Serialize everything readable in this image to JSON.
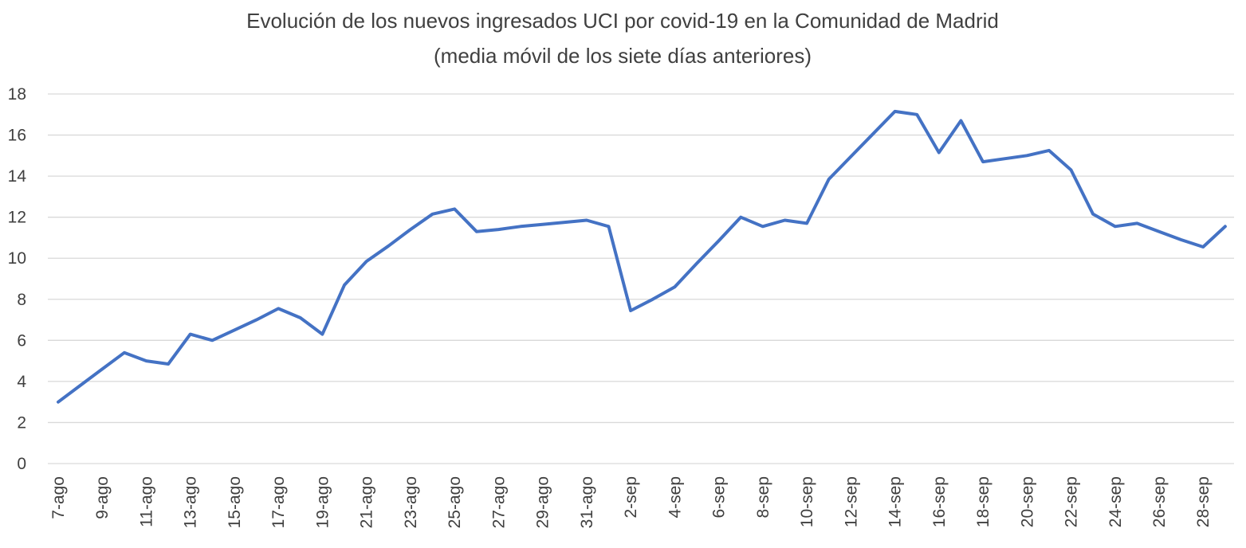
{
  "chart_data": {
    "type": "line",
    "title": "Evolución de los nuevos ingresados UCI por covid-19 en la Comunidad de Madrid",
    "subtitle": "(media móvil de los siete días anteriores)",
    "xlabel": "",
    "ylabel": "",
    "ylim": [
      0,
      18
    ],
    "yticks": [
      0,
      2,
      4,
      6,
      8,
      10,
      12,
      14,
      16,
      18
    ],
    "grid": true,
    "legend": "none",
    "categories": [
      "7-ago",
      "8-ago",
      "9-ago",
      "10-ago",
      "11-ago",
      "12-ago",
      "13-ago",
      "14-ago",
      "15-ago",
      "16-ago",
      "17-ago",
      "18-ago",
      "19-ago",
      "20-ago",
      "21-ago",
      "22-ago",
      "23-ago",
      "24-ago",
      "25-ago",
      "26-ago",
      "27-ago",
      "28-ago",
      "29-ago",
      "30-ago",
      "31-ago",
      "1-sep",
      "2-sep",
      "3-sep",
      "4-sep",
      "5-sep",
      "6-sep",
      "7-sep",
      "8-sep",
      "9-sep",
      "10-sep",
      "11-sep",
      "12-sep",
      "13-sep",
      "14-sep",
      "15-sep",
      "16-sep",
      "17-sep",
      "18-sep",
      "19-sep",
      "20-sep",
      "21-sep",
      "22-sep",
      "23-sep",
      "24-sep",
      "25-sep",
      "26-sep",
      "27-sep",
      "28-sep",
      "29-sep"
    ],
    "tick_labels": [
      "7-ago",
      "9-ago",
      "11-ago",
      "13-ago",
      "15-ago",
      "17-ago",
      "19-ago",
      "21-ago",
      "23-ago",
      "25-ago",
      "27-ago",
      "29-ago",
      "31-ago",
      "2-sep",
      "4-sep",
      "6-sep",
      "8-sep",
      "10-sep",
      "12-sep",
      "14-sep",
      "16-sep",
      "18-sep",
      "20-sep",
      "22-sep",
      "24-sep",
      "26-sep",
      "28-sep"
    ],
    "series": [
      {
        "name": "Nuevos ingresados UCI (media móvil 7 días)",
        "color": "#4472c4",
        "values": [
          3.0,
          3.8,
          4.6,
          5.4,
          5.0,
          4.85,
          6.3,
          6.0,
          6.5,
          7.0,
          7.55,
          7.1,
          6.3,
          8.7,
          9.85,
          10.6,
          11.4,
          12.15,
          12.4,
          11.3,
          11.4,
          11.55,
          11.65,
          11.75,
          11.85,
          11.55,
          7.45,
          8.0,
          8.6,
          9.75,
          10.85,
          12.0,
          11.55,
          11.85,
          11.7,
          13.85,
          14.95,
          16.05,
          17.15,
          17.0,
          15.15,
          16.7,
          14.7,
          14.85,
          15.0,
          15.25,
          14.3,
          12.15,
          11.55,
          11.7,
          11.3,
          10.9,
          10.55,
          11.55
        ]
      }
    ]
  }
}
